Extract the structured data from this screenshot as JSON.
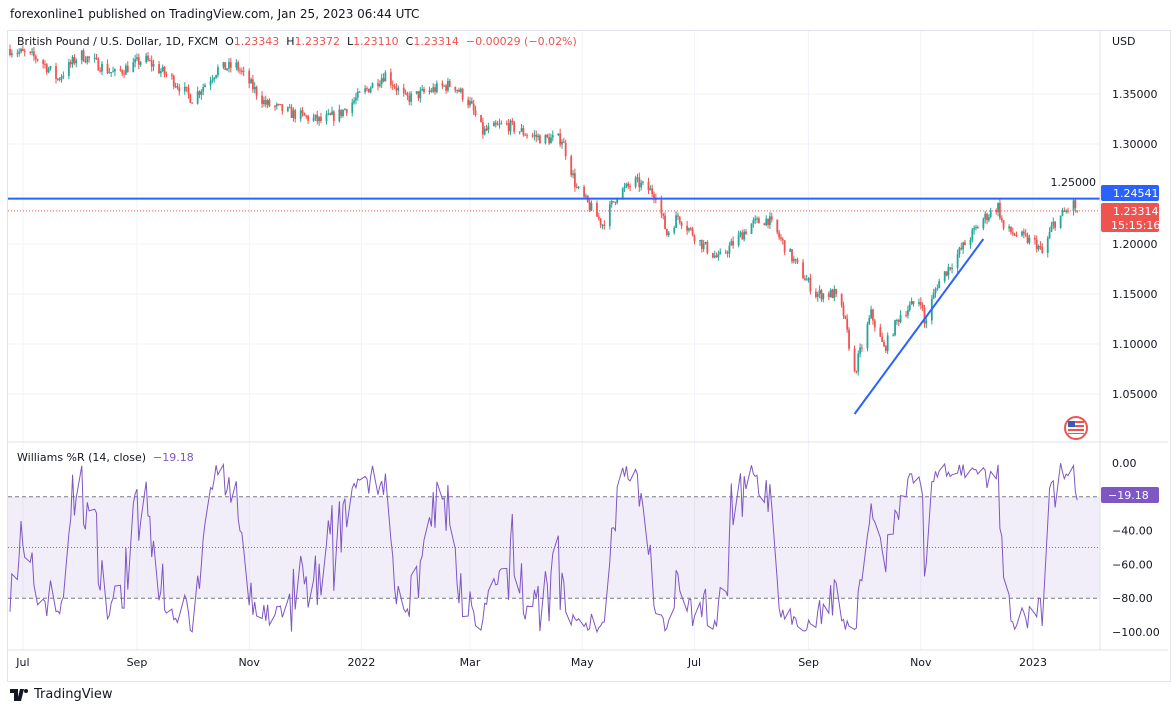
{
  "publish_line": "forexonline1 published on TradingView.com, Jan 25, 2023 06:44 UTC",
  "legend": {
    "symbol": "British Pound / U.S. Dollar, 1D, FXCM",
    "o_label": "O",
    "o": "1.23343",
    "h_label": "H",
    "h": "1.23372",
    "l_label": "L",
    "l": "1.23110",
    "c_label": "C",
    "c": "1.23314",
    "change": "−0.00029 (−0.02%)"
  },
  "currency": "USD",
  "price_ticks": [
    "1.35000",
    "1.30000",
    "1.25000",
    "1.20000",
    "1.15000",
    "1.10000",
    "1.05000"
  ],
  "price_tick_values": [
    1.35,
    1.3,
    1.25,
    1.2,
    1.15,
    1.1,
    1.05
  ],
  "horizontal_line": {
    "price": 1.24541,
    "label": "1.24541",
    "color": "#2962ff"
  },
  "last_price": {
    "label": "1.23314",
    "countdown": "15:15:16",
    "color": "#ef5350"
  },
  "trendline": {
    "from": {
      "date": "2022-09-26",
      "price": 1.03
    },
    "to": {
      "date": "2022-12-05",
      "price": 1.205
    },
    "color": "#2962ff"
  },
  "williams": {
    "title": "Williams %R (14, close)",
    "value": "−19.18",
    "ticks": [
      "0.00",
      "−40.00",
      "−60.00",
      "−80.00",
      "−100.00"
    ],
    "tick_values": [
      0,
      -40,
      -60,
      -80,
      -100
    ],
    "upper_band": -20,
    "lower_band": -80,
    "mid": -50,
    "color": "#7e57c2"
  },
  "x_ticks": [
    {
      "label": "Jul",
      "date": "2021-07-01"
    },
    {
      "label": "Sep",
      "date": "2021-09-01"
    },
    {
      "label": "Nov",
      "date": "2021-11-01"
    },
    {
      "label": "2022",
      "date": "2022-01-01"
    },
    {
      "label": "Mar",
      "date": "2022-03-01"
    },
    {
      "label": "May",
      "date": "2022-05-01"
    },
    {
      "label": "Jul",
      "date": "2022-07-01"
    },
    {
      "label": "Sep",
      "date": "2022-09-01"
    },
    {
      "label": "Nov",
      "date": "2022-11-01"
    },
    {
      "label": "2023",
      "date": "2023-01-01"
    }
  ],
  "colors": {
    "up": "#26a69a",
    "down": "#ef5350"
  },
  "price_anchors": [
    [
      "2021-06-24",
      1.395
    ],
    [
      "2021-07-10",
      1.385
    ],
    [
      "2021-07-20",
      1.365
    ],
    [
      "2021-08-01",
      1.39
    ],
    [
      "2021-08-20",
      1.37
    ],
    [
      "2021-09-05",
      1.385
    ],
    [
      "2021-09-20",
      1.365
    ],
    [
      "2021-10-01",
      1.345
    ],
    [
      "2021-10-15",
      1.375
    ],
    [
      "2021-10-25",
      1.378
    ],
    [
      "2021-11-10",
      1.34
    ],
    [
      "2021-11-25",
      1.33
    ],
    [
      "2021-12-10",
      1.323
    ],
    [
      "2021-12-20",
      1.33
    ],
    [
      "2022-01-01",
      1.35
    ],
    [
      "2022-01-14",
      1.37
    ],
    [
      "2022-01-25",
      1.345
    ],
    [
      "2022-02-10",
      1.355
    ],
    [
      "2022-02-20",
      1.36
    ],
    [
      "2022-03-01",
      1.34
    ],
    [
      "2022-03-08",
      1.312
    ],
    [
      "2022-03-20",
      1.32
    ],
    [
      "2022-04-01",
      1.31
    ],
    [
      "2022-04-10",
      1.305
    ],
    [
      "2022-04-20",
      1.305
    ],
    [
      "2022-04-28",
      1.255
    ],
    [
      "2022-05-12",
      1.22
    ],
    [
      "2022-05-20",
      1.25
    ],
    [
      "2022-05-30",
      1.262
    ],
    [
      "2022-06-10",
      1.25
    ],
    [
      "2022-06-16",
      1.21
    ],
    [
      "2022-06-22",
      1.228
    ],
    [
      "2022-07-05",
      1.2
    ],
    [
      "2022-07-14",
      1.185
    ],
    [
      "2022-08-01",
      1.22
    ],
    [
      "2022-08-10",
      1.225
    ],
    [
      "2022-08-25",
      1.18
    ],
    [
      "2022-09-05",
      1.15
    ],
    [
      "2022-09-15",
      1.15
    ],
    [
      "2022-09-20",
      1.13
    ],
    [
      "2022-09-26",
      1.07
    ],
    [
      "2022-09-28",
      1.085
    ],
    [
      "2022-10-05",
      1.13
    ],
    [
      "2022-10-12",
      1.095
    ],
    [
      "2022-10-21",
      1.13
    ],
    [
      "2022-11-01",
      1.145
    ],
    [
      "2022-11-03",
      1.12
    ],
    [
      "2022-11-10",
      1.16
    ],
    [
      "2022-11-25",
      1.2
    ],
    [
      "2022-12-05",
      1.225
    ],
    [
      "2022-12-13",
      1.238
    ],
    [
      "2022-12-16",
      1.215
    ],
    [
      "2023-01-03",
      1.2
    ],
    [
      "2023-01-06",
      1.19
    ],
    [
      "2023-01-12",
      1.22
    ],
    [
      "2023-01-23",
      1.24
    ],
    [
      "2023-01-25",
      1.23314
    ]
  ],
  "brand": "TradingView"
}
